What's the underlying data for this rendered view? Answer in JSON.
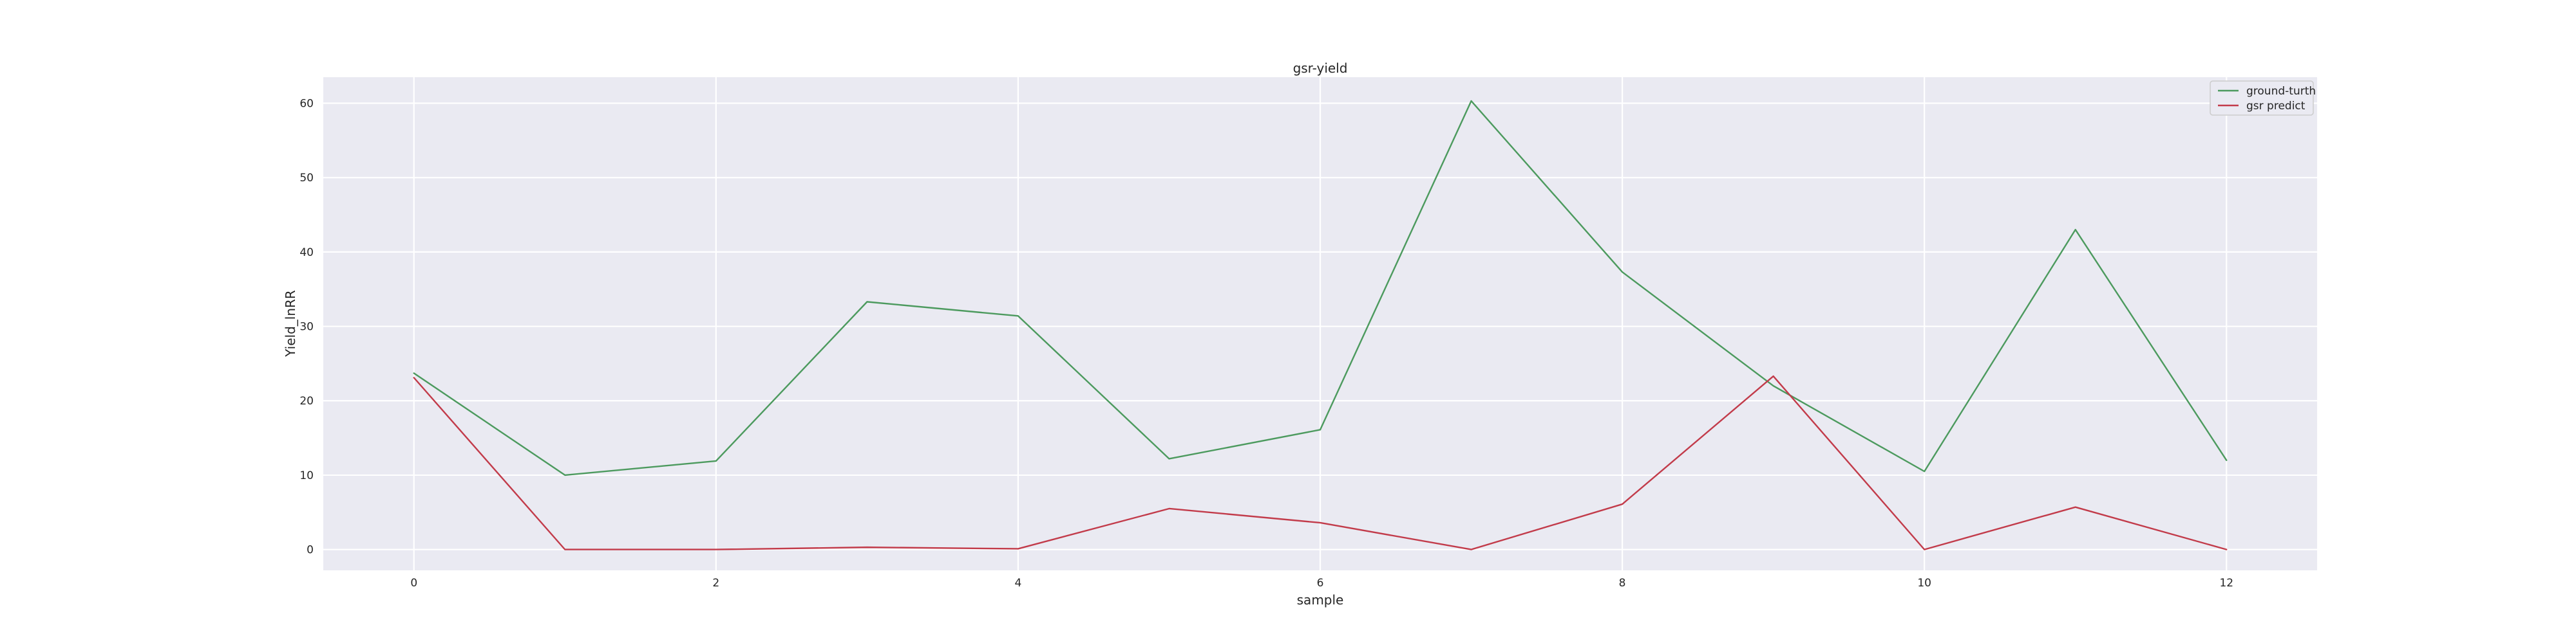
{
  "chart_data": {
    "type": "line",
    "title": "gsr-yield",
    "xlabel": "sample",
    "ylabel": "Yield_lnRR",
    "x": [
      0,
      1,
      2,
      3,
      4,
      5,
      6,
      7,
      8,
      9,
      10,
      11,
      12
    ],
    "xticks": [
      0,
      2,
      4,
      6,
      8,
      10,
      12
    ],
    "yticks": [
      0,
      10,
      20,
      30,
      40,
      50,
      60
    ],
    "xlim": [
      -0.6,
      12.6
    ],
    "ylim": [
      -2.8,
      63.5
    ],
    "grid": true,
    "legend_position": "top-right",
    "series": [
      {
        "name": "ground-turth",
        "color": "#4c9a5e",
        "values": [
          23.7,
          10.0,
          11.9,
          33.3,
          31.4,
          12.2,
          16.1,
          60.3,
          37.3,
          22.0,
          10.5,
          43.0,
          12.0
        ]
      },
      {
        "name": "gsr predict",
        "color": "#c23b4a",
        "values": [
          23.1,
          0.0,
          0.0,
          0.3,
          0.1,
          5.5,
          3.6,
          0.0,
          6.1,
          23.3,
          0.0,
          5.7,
          0.0
        ]
      }
    ]
  }
}
